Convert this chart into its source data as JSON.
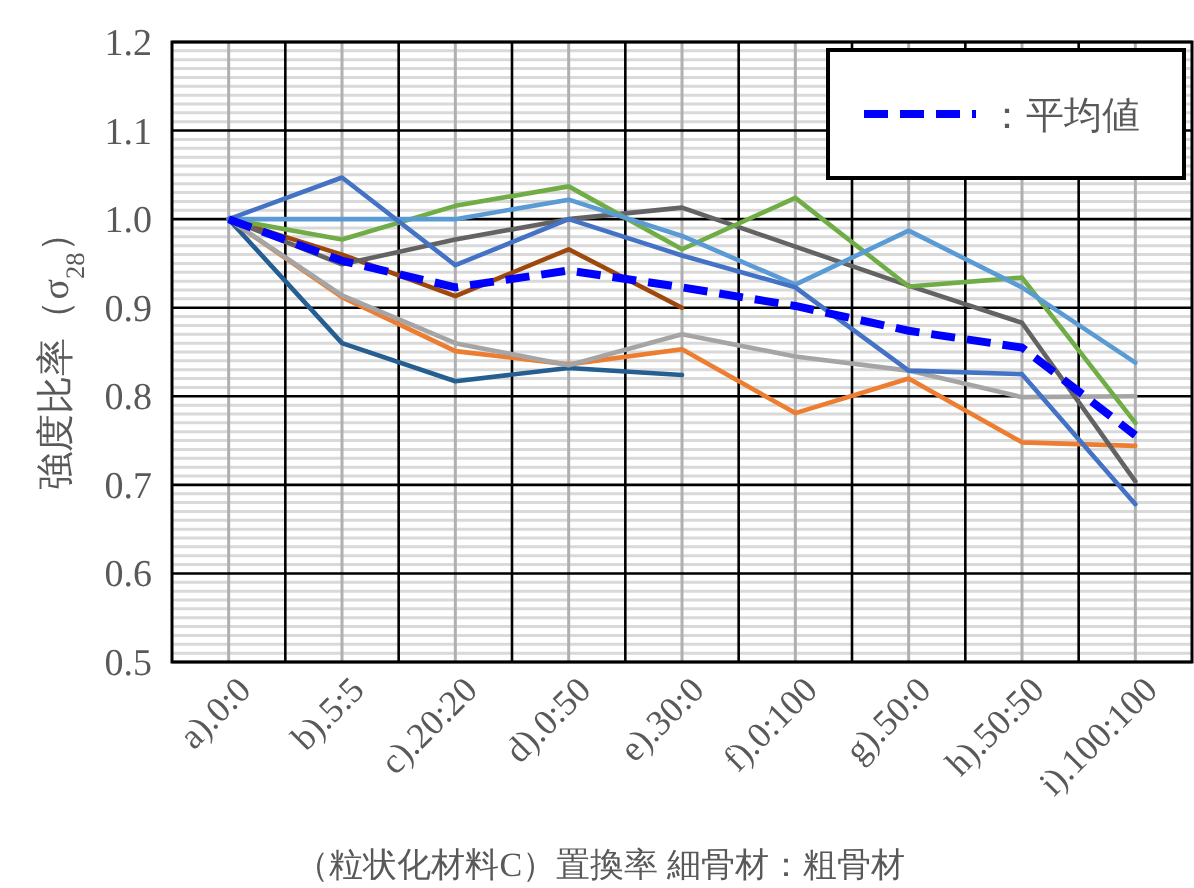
{
  "chart_data": {
    "type": "line",
    "xlabel": "（粒状化材料C）置換率 細骨材：粗骨材",
    "ylabel": "強度比率（σ$_{28}$）",
    "categories": [
      "a).0:0",
      "b).5:5",
      "c).20:20",
      "d).0:50",
      "e).30:0",
      "f).0:100",
      "g).50:0",
      "h).50:50",
      "i).100:100"
    ],
    "ylim": [
      0.5,
      1.2
    ],
    "yticks": [
      0.5,
      0.6,
      0.7,
      0.8,
      0.9,
      {
        "value": 1,
        "label": "1.0"
      },
      1.1,
      1.2
    ],
    "grid": true,
    "legend": "top right",
    "marker": "none",
    "series": [
      {
        "color": "#255e91",
        "values": [
          1,
          0.86,
          0.817,
          0.832,
          0.824,
          null,
          null,
          null,
          null
        ]
      },
      {
        "color": "#ed7d31",
        "values": [
          1,
          0.912,
          0.851,
          0.836,
          0.853,
          0.781,
          0.82,
          0.748,
          0.744
        ]
      },
      {
        "color": "#a5a5a5",
        "values": [
          1,
          0.914,
          0.86,
          0.835,
          0.87,
          0.845,
          0.829,
          0.799,
          0.8
        ]
      },
      {
        "color": "#9e480e",
        "values": [
          1,
          0.96,
          0.913,
          0.966,
          0.9,
          null,
          null,
          null,
          null
        ]
      },
      {
        "color": "#636363",
        "values": [
          1,
          0.949,
          0.977,
          1,
          1.013,
          0.969,
          0.925,
          0.883,
          0.704
        ]
      },
      {
        "color": "#70ad47",
        "values": [
          1,
          0.977,
          1.015,
          1.037,
          0.966,
          1.024,
          0.924,
          0.934,
          0.77
        ]
      },
      {
        "color": "#5b9bd5",
        "values": [
          1,
          1,
          1,
          1.022,
          0.981,
          0.926,
          0.987,
          0.923,
          0.838
        ]
      },
      {
        "color": "#4472c4",
        "values": [
          1,
          1.047,
          0.948,
          1,
          0.959,
          0.923,
          0.829,
          0.825,
          0.678
        ]
      },
      {
        "name": "：平均値",
        "color": "#0000ff",
        "line_style": "dashed",
        "values": [
          1,
          0.953,
          0.923,
          0.942,
          0.923,
          0.902,
          0.874,
          0.855,
          0.756
        ]
      }
    ]
  }
}
